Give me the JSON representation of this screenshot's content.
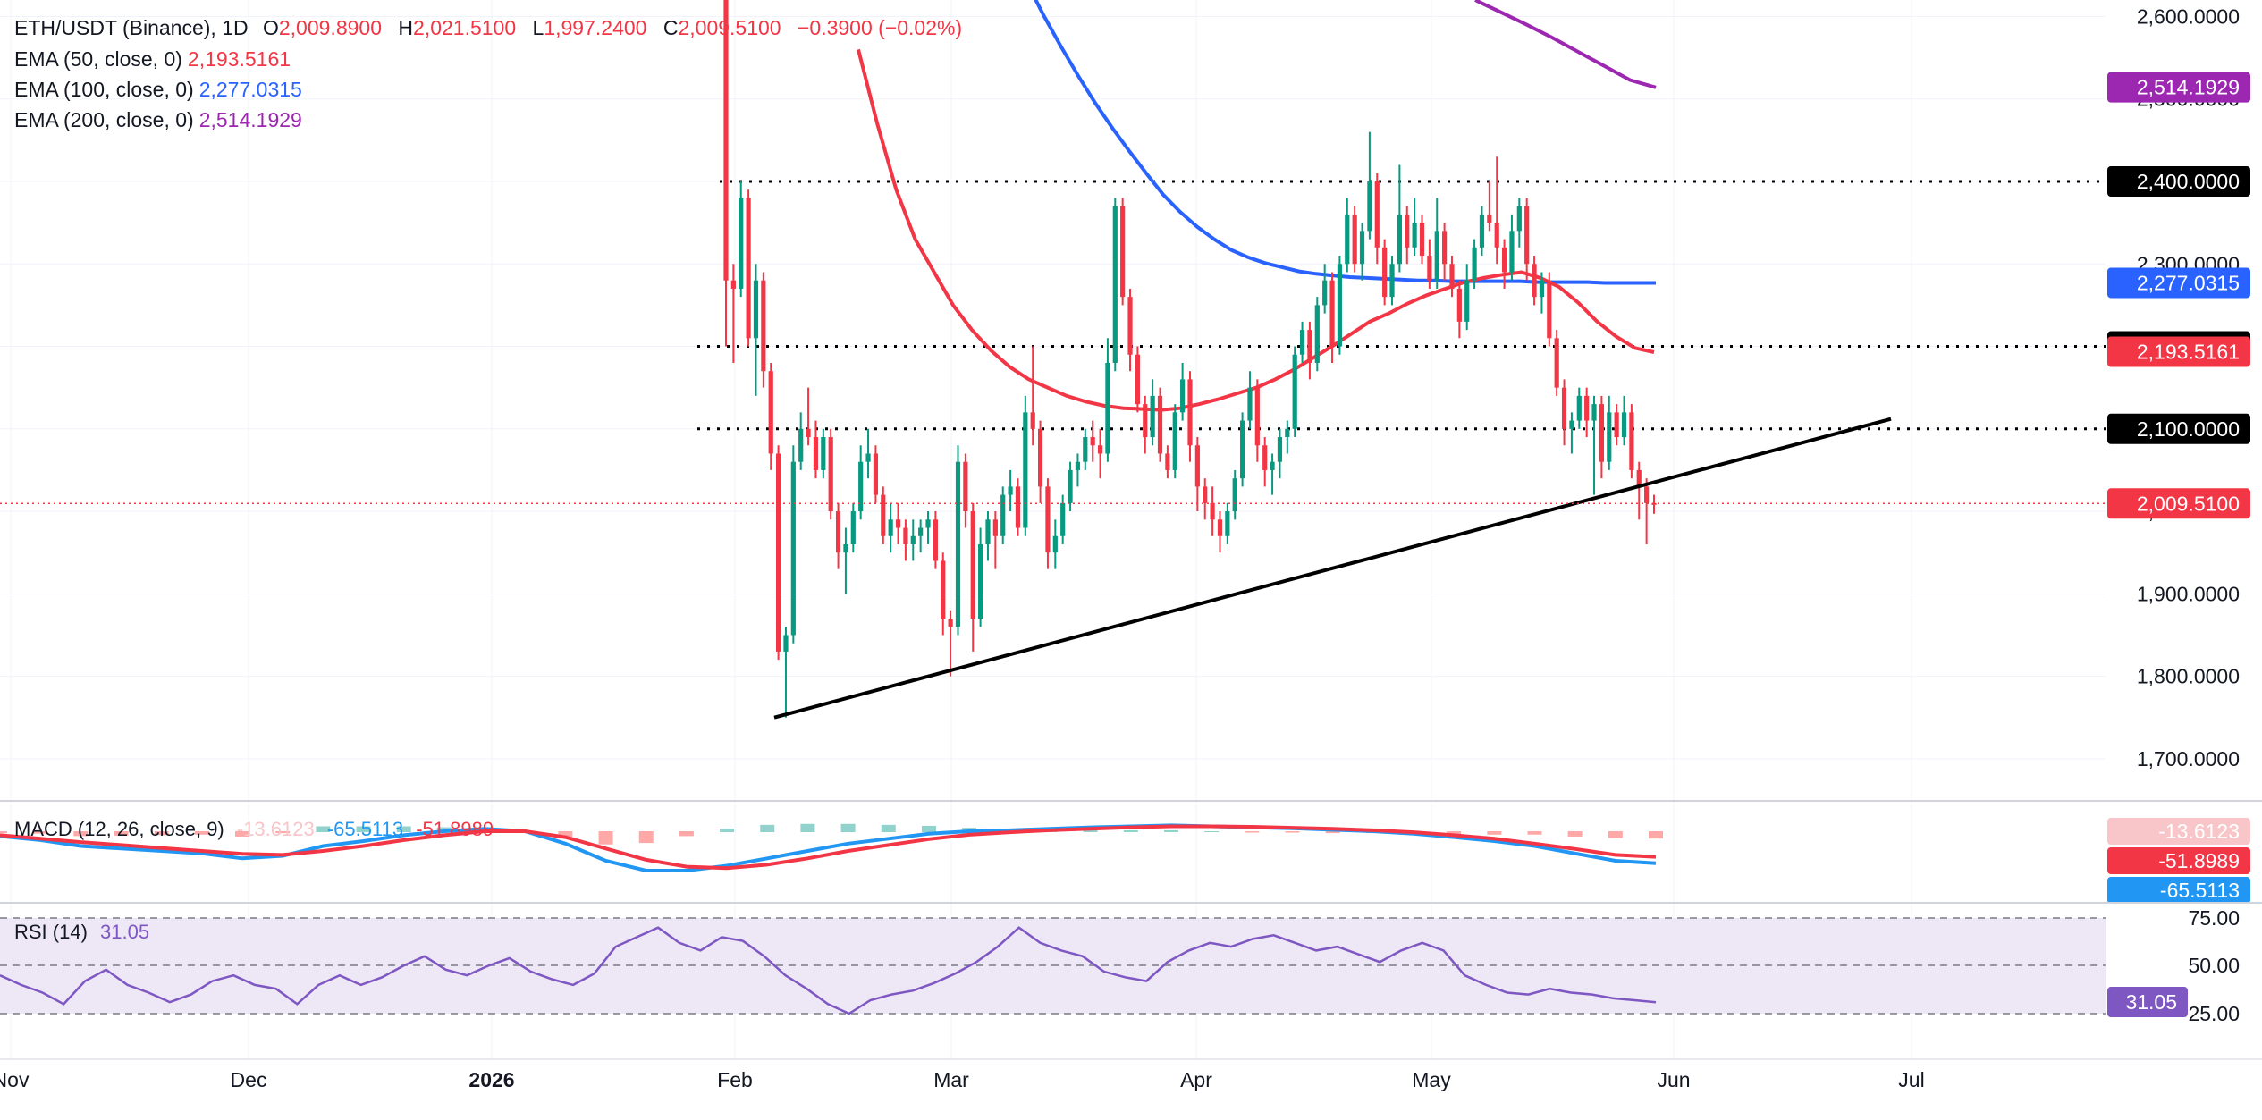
{
  "header": {
    "symbol": "ETH/USDT (Binance), 1D",
    "open_key": "O",
    "open": "2,009.8900",
    "high_key": "H",
    "high": "2,021.5100",
    "low_key": "L",
    "low": "1,997.2400",
    "close_key": "C",
    "close": "2,009.5100",
    "change": "−0.3900 (−0.02%)"
  },
  "indicators": [
    {
      "label": "EMA (50, close, 0)",
      "value": "2,193.5161",
      "color": "#f23645"
    },
    {
      "label": "EMA (100, close, 0)",
      "value": "2,277.0315",
      "color": "#2962ff"
    },
    {
      "label": "EMA (200, close, 0)",
      "value": "2,514.1929",
      "color": "#9c27b0"
    }
  ],
  "macd": {
    "label": "MACD (12, 26, close, 9)",
    "hist": "-13.6123",
    "signal": "-51.8989",
    "macd": "-65.5113"
  },
  "rsi": {
    "label": "RSI (14)",
    "value": "31.05"
  },
  "colors": {
    "up": "#089981",
    "down": "#f23645",
    "ema50": "#f23645",
    "ema100": "#2962ff",
    "ema200": "#9c27b0",
    "rsi_line": "#7e57c2",
    "rsi_band": "#ede7f6"
  },
  "price_axis": {
    "ticks": [
      "2,600.0000",
      "2,500.0000",
      "2,400.0000",
      "2,300.0000",
      "2,200.0000",
      "2,100.0000",
      "2,000.0000",
      "1,900.0000",
      "1,800.0000",
      "1,700.0000"
    ]
  },
  "rsi_axis": {
    "ticks": [
      "75.00",
      "50.00",
      "25.00"
    ]
  },
  "price_tags": [
    {
      "text": "2,514.1929",
      "price": 2514.19,
      "bg": "#9c27b0",
      "fg": "#ffffff"
    },
    {
      "text": "2,400.0000",
      "price": 2400,
      "bg": "#000000",
      "fg": "#ffffff"
    },
    {
      "text": "2,277.0315",
      "price": 2277.03,
      "bg": "#2962ff",
      "fg": "#ffffff"
    },
    {
      "text": "2,200.0000",
      "price": 2200,
      "bg": "#000000",
      "fg": "#ffffff"
    },
    {
      "text": "2,193.5161",
      "price": 2193.52,
      "bg": "#f23645",
      "fg": "#ffffff"
    },
    {
      "text": "2,100.0000",
      "price": 2100,
      "bg": "#000000",
      "fg": "#ffffff"
    },
    {
      "text": "2,009.5100",
      "price": 2009.51,
      "bg": "#f23645",
      "fg": "#ffffff"
    }
  ],
  "macd_tags": [
    {
      "text": "-13.6123",
      "bg": "#f8c5c9",
      "fg": "#131722"
    },
    {
      "text": "-51.8989",
      "bg": "#f23645",
      "fg": "#ffffff"
    },
    {
      "text": "-65.5113",
      "bg": "#2196f3",
      "fg": "#ffffff"
    }
  ],
  "rsi_tag": {
    "text": "31.05",
    "bg": "#7e57c2",
    "fg": "#ffffff"
  },
  "time_axis": {
    "labels": [
      "Nov",
      "Dec",
      "2026",
      "Feb",
      "Mar",
      "Apr",
      "May",
      "Jun",
      "Jul"
    ]
  },
  "chart_data": {
    "type": "candlestick",
    "title": "ETH/USDT (Binance), 1D",
    "ylim": [
      1650,
      2620
    ],
    "horizontal_levels": [
      2400,
      2200,
      2100
    ],
    "trendline": [
      {
        "date": "2026-02-04",
        "price": 1750
      },
      {
        "date": "2026-06-27",
        "price": 2112
      }
    ],
    "ohlc": [
      [
        2630,
        2640,
        2200,
        2280
      ],
      [
        2280,
        2300,
        2180,
        2270
      ],
      [
        2270,
        2400,
        2260,
        2380
      ],
      [
        2380,
        2390,
        2200,
        2210
      ],
      [
        2210,
        2300,
        2140,
        2280
      ],
      [
        2280,
        2290,
        2150,
        2170
      ],
      [
        2170,
        2180,
        2050,
        2070
      ],
      [
        2070,
        2080,
        1820,
        1830
      ],
      [
        1830,
        1860,
        1750,
        1850
      ],
      [
        1850,
        2080,
        1840,
        2060
      ],
      [
        2060,
        2120,
        2050,
        2100
      ],
      [
        2100,
        2150,
        2080,
        2090
      ],
      [
        2090,
        2110,
        2040,
        2050
      ],
      [
        2050,
        2100,
        2040,
        2090
      ],
      [
        2090,
        2100,
        1990,
        2000
      ],
      [
        2000,
        2010,
        1930,
        1950
      ],
      [
        1950,
        1980,
        1900,
        1960
      ],
      [
        1960,
        2010,
        1950,
        2000
      ],
      [
        2000,
        2080,
        1990,
        2060
      ],
      [
        2060,
        2100,
        2040,
        2070
      ],
      [
        2070,
        2080,
        2010,
        2020
      ],
      [
        2020,
        2030,
        1960,
        1970
      ],
      [
        1970,
        2010,
        1950,
        1990
      ],
      [
        1990,
        2010,
        1960,
        1980
      ],
      [
        1980,
        1990,
        1940,
        1960
      ],
      [
        1960,
        1990,
        1940,
        1970
      ],
      [
        1970,
        1990,
        1950,
        1980
      ],
      [
        1980,
        2000,
        1960,
        1990
      ],
      [
        1990,
        2000,
        1930,
        1940
      ],
      [
        1940,
        1950,
        1850,
        1870
      ],
      [
        1870,
        1880,
        1800,
        1860
      ],
      [
        1860,
        2080,
        1850,
        2060
      ],
      [
        2060,
        2070,
        1980,
        2000
      ],
      [
        2000,
        2010,
        1830,
        1870
      ],
      [
        1870,
        1980,
        1860,
        1960
      ],
      [
        1960,
        2000,
        1940,
        1990
      ],
      [
        1990,
        2000,
        1930,
        1970
      ],
      [
        1970,
        2030,
        1960,
        2020
      ],
      [
        2020,
        2050,
        2000,
        2030
      ],
      [
        2030,
        2040,
        1970,
        1980
      ],
      [
        1980,
        2140,
        1970,
        2120
      ],
      [
        2120,
        2200,
        2080,
        2100
      ],
      [
        2100,
        2110,
        2010,
        2030
      ],
      [
        2030,
        2040,
        1930,
        1950
      ],
      [
        1950,
        1990,
        1930,
        1970
      ],
      [
        1970,
        2020,
        1960,
        2010
      ],
      [
        2010,
        2060,
        2000,
        2050
      ],
      [
        2050,
        2070,
        2030,
        2060
      ],
      [
        2060,
        2100,
        2050,
        2090
      ],
      [
        2090,
        2110,
        2060,
        2080
      ],
      [
        2080,
        2100,
        2040,
        2070
      ],
      [
        2070,
        2210,
        2060,
        2180
      ],
      [
        2180,
        2380,
        2170,
        2370
      ],
      [
        2370,
        2380,
        2250,
        2260
      ],
      [
        2260,
        2270,
        2170,
        2190
      ],
      [
        2190,
        2200,
        2120,
        2130
      ],
      [
        2130,
        2140,
        2070,
        2090
      ],
      [
        2090,
        2160,
        2080,
        2140
      ],
      [
        2140,
        2150,
        2060,
        2070
      ],
      [
        2070,
        2080,
        2040,
        2050
      ],
      [
        2050,
        2130,
        2040,
        2120
      ],
      [
        2120,
        2180,
        2110,
        2160
      ],
      [
        2160,
        2170,
        2060,
        2080
      ],
      [
        2080,
        2090,
        2000,
        2030
      ],
      [
        2030,
        2040,
        1990,
        2010
      ],
      [
        2010,
        2030,
        1970,
        1990
      ],
      [
        1990,
        2000,
        1950,
        1970
      ],
      [
        1970,
        2010,
        1960,
        2000
      ],
      [
        2000,
        2050,
        1990,
        2040
      ],
      [
        2040,
        2120,
        2030,
        2110
      ],
      [
        2110,
        2170,
        2100,
        2150
      ],
      [
        2150,
        2160,
        2060,
        2080
      ],
      [
        2080,
        2090,
        2030,
        2050
      ],
      [
        2050,
        2070,
        2020,
        2060
      ],
      [
        2060,
        2100,
        2040,
        2090
      ],
      [
        2090,
        2110,
        2070,
        2100
      ],
      [
        2100,
        2200,
        2090,
        2190
      ],
      [
        2190,
        2230,
        2180,
        2220
      ],
      [
        2220,
        2230,
        2160,
        2180
      ],
      [
        2180,
        2260,
        2170,
        2250
      ],
      [
        2250,
        2300,
        2240,
        2280
      ],
      [
        2280,
        2290,
        2180,
        2200
      ],
      [
        2200,
        2310,
        2190,
        2300
      ],
      [
        2300,
        2380,
        2290,
        2360
      ],
      [
        2360,
        2370,
        2290,
        2300
      ],
      [
        2300,
        2350,
        2280,
        2340
      ],
      [
        2340,
        2460,
        2330,
        2400
      ],
      [
        2400,
        2410,
        2300,
        2320
      ],
      [
        2320,
        2330,
        2250,
        2260
      ],
      [
        2260,
        2310,
        2250,
        2300
      ],
      [
        2300,
        2420,
        2290,
        2360
      ],
      [
        2360,
        2370,
        2300,
        2320
      ],
      [
        2320,
        2380,
        2310,
        2350
      ],
      [
        2350,
        2360,
        2300,
        2310
      ],
      [
        2310,
        2330,
        2270,
        2280
      ],
      [
        2280,
        2380,
        2270,
        2340
      ],
      [
        2340,
        2350,
        2280,
        2300
      ],
      [
        2300,
        2310,
        2260,
        2270
      ],
      [
        2270,
        2280,
        2210,
        2230
      ],
      [
        2230,
        2300,
        2220,
        2280
      ],
      [
        2280,
        2330,
        2270,
        2320
      ],
      [
        2320,
        2370,
        2310,
        2360
      ],
      [
        2360,
        2400,
        2340,
        2350
      ],
      [
        2350,
        2430,
        2300,
        2320
      ],
      [
        2320,
        2330,
        2270,
        2290
      ],
      [
        2290,
        2360,
        2280,
        2340
      ],
      [
        2340,
        2380,
        2320,
        2370
      ],
      [
        2370,
        2380,
        2280,
        2300
      ],
      [
        2300,
        2310,
        2250,
        2260
      ],
      [
        2260,
        2290,
        2240,
        2280
      ],
      [
        2280,
        2290,
        2200,
        2210
      ],
      [
        2210,
        2220,
        2140,
        2150
      ],
      [
        2150,
        2160,
        2080,
        2100
      ],
      [
        2100,
        2120,
        2070,
        2110
      ],
      [
        2110,
        2150,
        2100,
        2140
      ],
      [
        2140,
        2150,
        2090,
        2110
      ],
      [
        2110,
        2140,
        2020,
        2130
      ],
      [
        2130,
        2140,
        2040,
        2060
      ],
      [
        2060,
        2140,
        2050,
        2120
      ],
      [
        2120,
        2130,
        2080,
        2090
      ],
      [
        2090,
        2140,
        2080,
        2120
      ],
      [
        2120,
        2130,
        2040,
        2050
      ],
      [
        2050,
        2060,
        1990,
        2030
      ],
      [
        2030,
        2040,
        1960,
        2010
      ],
      [
        2010,
        2020,
        1997,
        2009
      ]
    ],
    "ema50": [
      2560,
      2470,
      2390,
      2330,
      2290,
      2250,
      2220,
      2195,
      2175,
      2160,
      2150,
      2140,
      2133,
      2128,
      2125,
      2124,
      2123,
      2125,
      2130,
      2136,
      2143,
      2150,
      2160,
      2172,
      2186,
      2200,
      2215,
      2230,
      2240,
      2252,
      2262,
      2270,
      2278,
      2283,
      2287,
      2290,
      2283,
      2272,
      2253,
      2230,
      2212,
      2198,
      2193
    ],
    "ema100": [
      2680,
      2640,
      2600,
      2563,
      2528,
      2495,
      2465,
      2437,
      2410,
      2384,
      2363,
      2345,
      2330,
      2317,
      2308,
      2301,
      2296,
      2291,
      2288,
      2286,
      2284,
      2283,
      2282,
      2281,
      2280,
      2280,
      2279,
      2279,
      2279,
      2279,
      2279,
      2278,
      2278,
      2278,
      2278,
      2277,
      2277,
      2277,
      2277
    ],
    "ema200": [
      2620,
      2605,
      2590,
      2574,
      2557,
      2540,
      2523,
      2514
    ],
    "rsi": [
      45,
      40,
      36,
      30,
      42,
      48,
      40,
      36,
      31,
      35,
      42,
      45,
      40,
      38,
      30,
      40,
      45,
      40,
      44,
      50,
      55,
      48,
      45,
      50,
      54,
      47,
      43,
      40,
      46,
      60,
      65,
      70,
      62,
      58,
      65,
      63,
      55,
      45,
      38,
      30,
      25,
      32,
      35,
      37,
      41,
      46,
      52,
      60,
      70,
      62,
      58,
      55,
      47,
      44,
      42,
      52,
      58,
      62,
      60,
      64,
      66,
      62,
      58,
      60,
      56,
      52,
      58,
      62,
      58,
      45,
      40,
      36,
      35,
      38,
      36,
      35,
      33,
      32,
      31
    ]
  }
}
